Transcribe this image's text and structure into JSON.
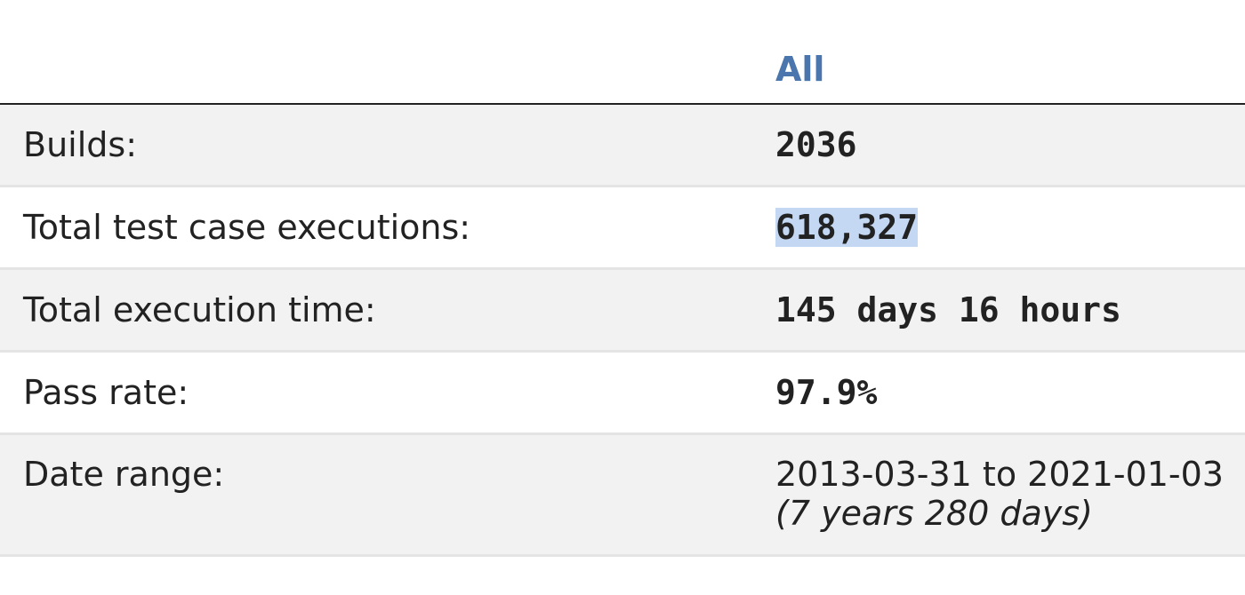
{
  "table": {
    "header": "All",
    "rows": [
      {
        "label": "Builds:",
        "value": "2036"
      },
      {
        "label": "Total test case executions:",
        "value": "618,327"
      },
      {
        "label": "Total execution time:",
        "value": "145 days 16 hours"
      },
      {
        "label": "Pass rate:",
        "value": "97.9%"
      },
      {
        "label": "Date range:",
        "value": "2013-03-31 to 2021-01-03",
        "note": "(7 years 280 days)"
      }
    ]
  }
}
